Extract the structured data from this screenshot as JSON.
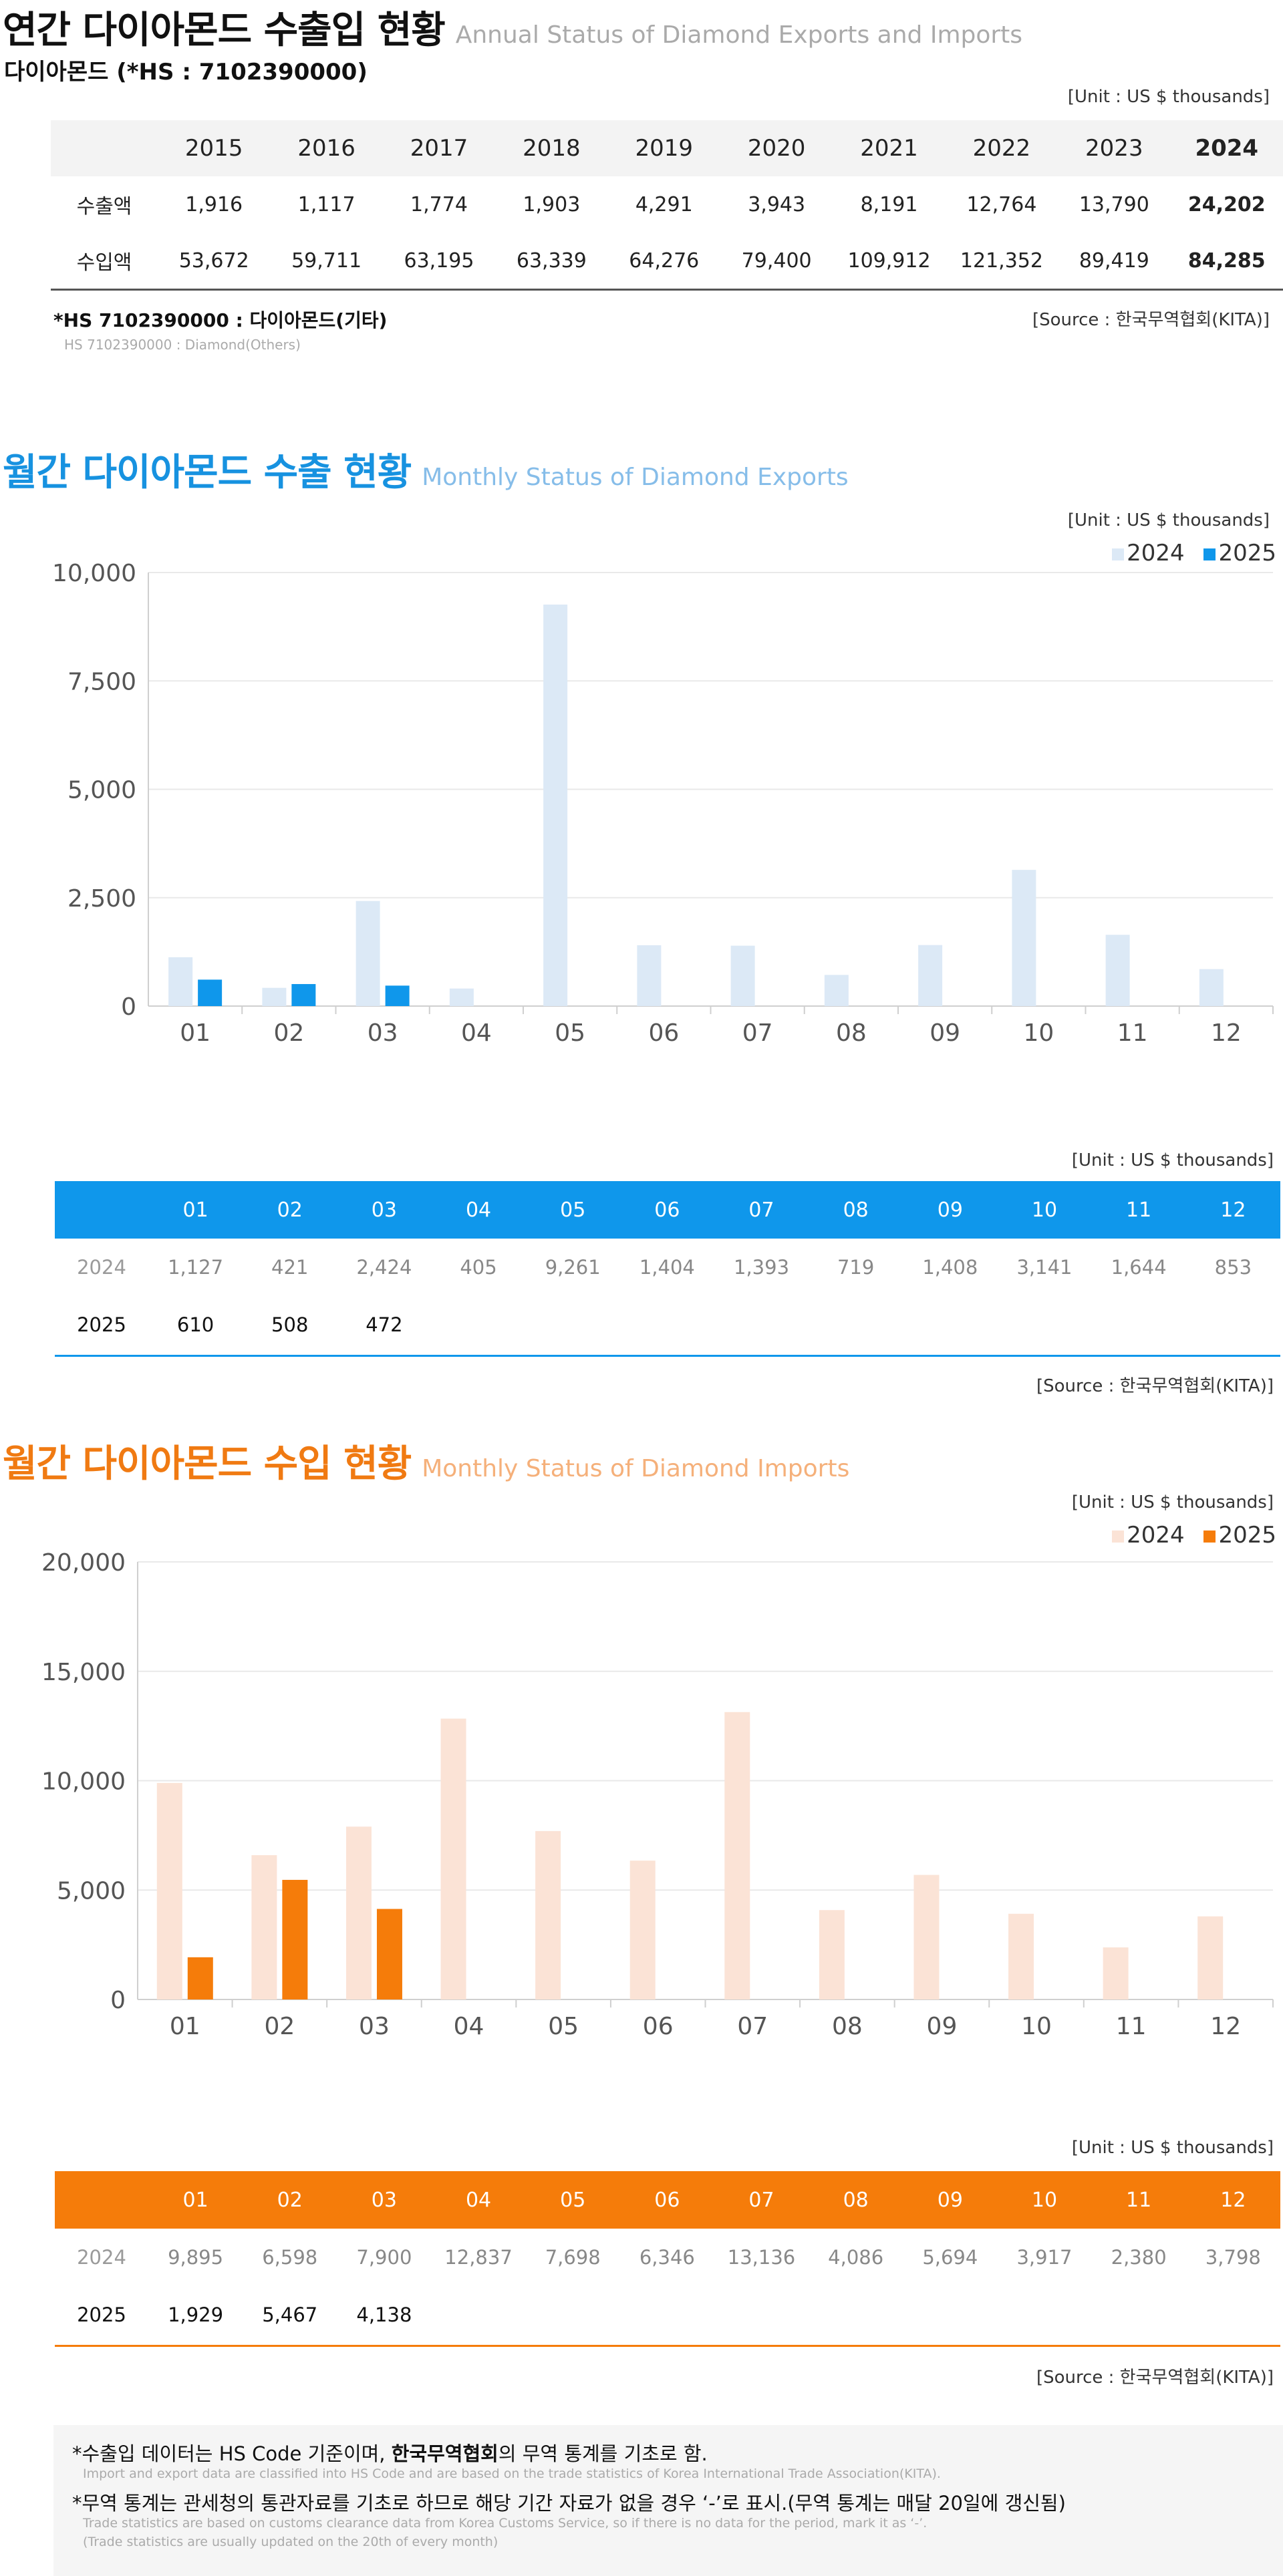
{
  "annual": {
    "title_ko": "연간 다이아몬드 수출입 현황",
    "title_en": "Annual Status of Diamond Exports and Imports",
    "subtitle": "다이아몬드 (*HS : 7102390000)",
    "unit": "[Unit : US $ thousands]",
    "years": [
      "2015",
      "2016",
      "2017",
      "2018",
      "2019",
      "2020",
      "2021",
      "2022",
      "2023",
      "2024"
    ],
    "rows": [
      {
        "label": "수출액",
        "values": [
          "1,916",
          "1,117",
          "1,774",
          "1,903",
          "4,291",
          "3,943",
          "8,191",
          "12,764",
          "13,790",
          "24,202"
        ]
      },
      {
        "label": "수입액",
        "values": [
          "53,672",
          "59,711",
          "63,195",
          "63,339",
          "64,276",
          "79,400",
          "109,912",
          "121,352",
          "89,419",
          "84,285"
        ]
      }
    ],
    "footnote_ko": "*HS 7102390000 : 다이아몬드(기타)",
    "footnote_en": "HS 7102390000 : Diamond(Others)",
    "source": "[Source : 한국무역협회(KITA)]"
  },
  "exports": {
    "title_ko": "월간 다이아몬드 수출 현황",
    "title_en": "Monthly Status of Diamond Exports",
    "unit": "[Unit : US $ thousands]",
    "table_unit": "[Unit : US $ thousands]",
    "source": "[Source : 한국무역협회(KITA)]",
    "colors": {
      "y2024": "#dce9f6",
      "y2025": "#0f97eb",
      "header": "#0f97eb"
    },
    "table_rows": [
      {
        "label": "2024",
        "values": [
          "1,127",
          "421",
          "2,424",
          "405",
          "9,261",
          "1,404",
          "1,393",
          "719",
          "1,408",
          "3,141",
          "1,644",
          "853"
        ]
      },
      {
        "label": "2025",
        "values": [
          "610",
          "508",
          "472",
          "",
          "",
          "",
          "",
          "",
          "",
          "",
          "",
          ""
        ]
      }
    ]
  },
  "imports": {
    "title_ko": "월간 다이아몬드 수입 현황",
    "title_en": "Monthly Status of Diamond Imports",
    "unit": "[Unit : US $ thousands]",
    "table_unit": "[Unit : US $ thousands]",
    "source": "[Source : 한국무역협회(KITA)]",
    "colors": {
      "y2024": "#fbe3d6",
      "y2025": "#f57c0a",
      "header": "#f57c0a"
    },
    "table_rows": [
      {
        "label": "2024",
        "values": [
          "9,895",
          "6,598",
          "7,900",
          "12,837",
          "7,698",
          "6,346",
          "13,136",
          "4,086",
          "5,694",
          "3,917",
          "2,380",
          "3,798"
        ]
      },
      {
        "label": "2025",
        "values": [
          "1,929",
          "5,467",
          "4,138",
          "",
          "",
          "",
          "",
          "",
          "",
          "",
          "",
          ""
        ]
      }
    ]
  },
  "chart_data": [
    {
      "type": "bar",
      "categories": [
        "01",
        "02",
        "03",
        "04",
        "05",
        "06",
        "07",
        "08",
        "09",
        "10",
        "11",
        "12"
      ],
      "series": [
        {
          "name": "2024",
          "values": [
            1127,
            421,
            2424,
            405,
            9261,
            1404,
            1393,
            719,
            1408,
            3141,
            1644,
            853
          ]
        },
        {
          "name": "2025",
          "values": [
            610,
            508,
            472,
            null,
            null,
            null,
            null,
            null,
            null,
            null,
            null,
            null
          ]
        }
      ],
      "ylim": [
        0,
        10000
      ],
      "yticks": [
        0,
        2500,
        5000,
        7500,
        10000
      ],
      "ytick_labels": [
        "0",
        "2,500",
        "5,000",
        "7,500",
        "10,000"
      ],
      "legend": "top-right",
      "grid": true
    },
    {
      "type": "bar",
      "categories": [
        "01",
        "02",
        "03",
        "04",
        "05",
        "06",
        "07",
        "08",
        "09",
        "10",
        "11",
        "12"
      ],
      "series": [
        {
          "name": "2024",
          "values": [
            9895,
            6598,
            7900,
            12837,
            7698,
            6346,
            13136,
            4086,
            5694,
            3917,
            2380,
            3798
          ]
        },
        {
          "name": "2025",
          "values": [
            1929,
            5467,
            4138,
            null,
            null,
            null,
            null,
            null,
            null,
            null,
            null,
            null
          ]
        }
      ],
      "ylim": [
        0,
        20000
      ],
      "yticks": [
        0,
        5000,
        10000,
        15000,
        20000
      ],
      "ytick_labels": [
        "0",
        "5,000",
        "10,000",
        "15,000",
        "20,000"
      ],
      "legend": "top-right",
      "grid": true
    }
  ],
  "notes": [
    {
      "ko_pre": "*수출입 데이터는 HS Code 기준이며, ",
      "ko_bold": "한국무역협회",
      "ko_post": "의 무역 통계를 기초로 함.",
      "en": [
        "Import and export data are classified into HS Code and are based on the trade statistics of Korea International  Trade Association(KITA)."
      ]
    },
    {
      "ko_pre": "*무역 통계는 관세청의  통관자료를 기초로 하므로 해당 기간 자료가 없을 경우 ‘-’로 표시.(무역 통계는 매달 20일에 갱신됨)",
      "ko_bold": "",
      "ko_post": "",
      "en": [
        "Trade statistics are based on customs clearance data from Korea Customs Service, so if there is no data for the period, mark it as ‘-’.",
        "(Trade statistics are usually updated on the 20th of every month)"
      ]
    }
  ]
}
